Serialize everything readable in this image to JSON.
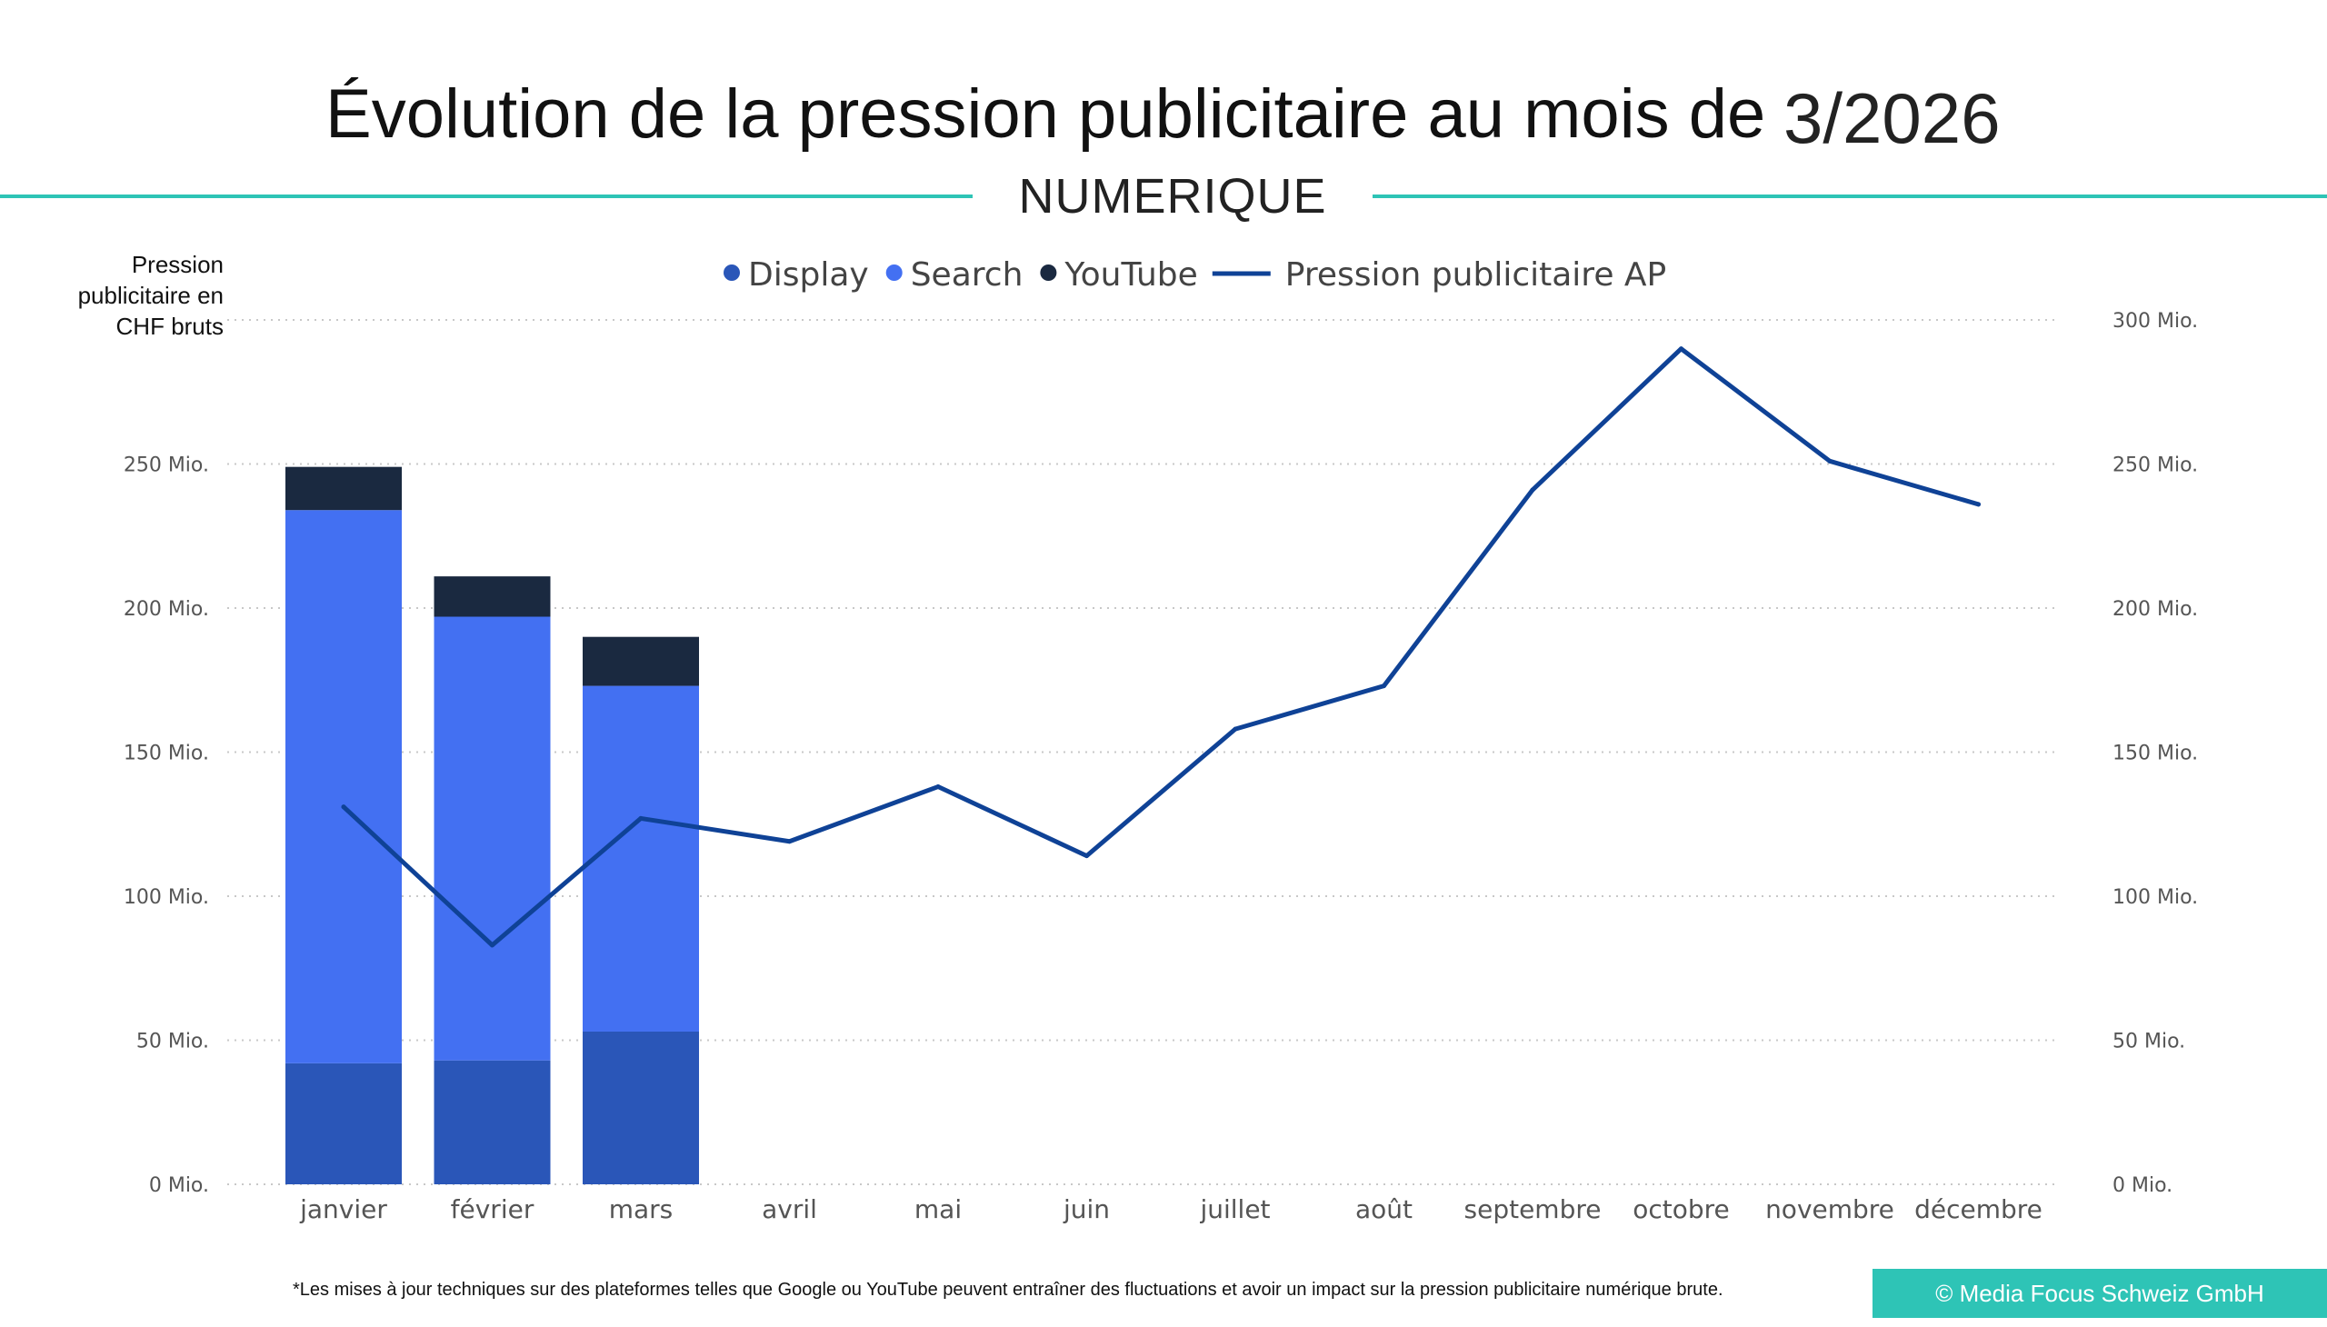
{
  "header": {
    "title": "Évolution de la pression publicitaire au mois de",
    "period": "3/2026",
    "subtitle": "NUMERIQUE"
  },
  "chart_data": {
    "type": "bar",
    "ylabel": "Pression publicitaire en CHF bruts",
    "categories": [
      "janvier",
      "février",
      "mars",
      "avril",
      "mai",
      "juin",
      "juillet",
      "août",
      "septembre",
      "octobre",
      "novembre",
      "décembre"
    ],
    "series": [
      {
        "name": "Display",
        "type": "bar",
        "stack": "main",
        "color": "#2a56b8",
        "values": [
          42,
          43,
          53,
          null,
          null,
          null,
          null,
          null,
          null,
          null,
          null,
          null
        ]
      },
      {
        "name": "Search",
        "type": "bar",
        "stack": "main",
        "color": "#4370f2",
        "values": [
          192,
          154,
          120,
          null,
          null,
          null,
          null,
          null,
          null,
          null,
          null,
          null
        ]
      },
      {
        "name": "YouTube",
        "type": "bar",
        "stack": "main",
        "color": "#1a2940",
        "values": [
          15,
          14,
          17,
          null,
          null,
          null,
          null,
          null,
          null,
          null,
          null,
          null
        ]
      },
      {
        "name": "Pression publicitaire AP",
        "type": "line",
        "color": "#0f4296",
        "values": [
          131,
          83,
          127,
          119,
          138,
          114,
          158,
          173,
          241,
          290,
          251,
          236
        ]
      }
    ],
    "ylim": [
      0,
      300
    ],
    "yticks": [
      "0 Mio.",
      "50 Mio.",
      "100 Mio.",
      "150 Mio.",
      "200 Mio.",
      "250 Mio.",
      "300 Mio."
    ],
    "left_axis_ticks": [
      "0 Mio.",
      "50 Mio.",
      "100 Mio.",
      "150 Mio.",
      "200 Mio.",
      "250 Mio."
    ],
    "right_axis_ticks": [
      "0 Mio.",
      "50 Mio.",
      "100 Mio.",
      "150 Mio.",
      "200 Mio.",
      "250 Mio.",
      "300 Mio."
    ],
    "grid": true,
    "legend": "top-center"
  },
  "footer": {
    "note": "*Les mises à jour techniques sur des plateformes telles que Google ou YouTube peuvent entraîner des fluctuations et avoir un impact sur la pression publicitaire numérique brute.",
    "copyright": "© Media Focus Schweiz GmbH"
  }
}
